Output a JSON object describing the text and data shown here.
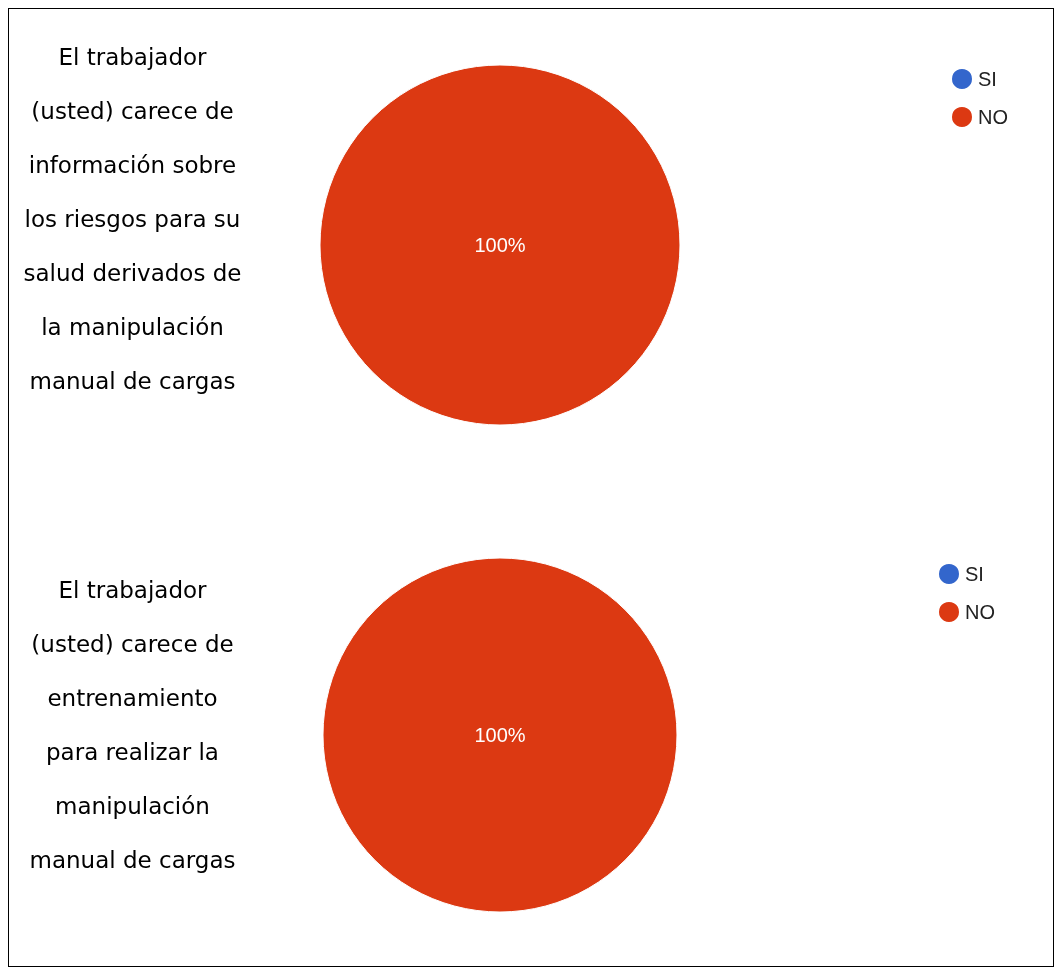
{
  "chart_data": [
    {
      "type": "pie",
      "title": "El trabajador (usted) carece de información sobre los riesgos para su salud derivados de la manipulación manual de cargas",
      "categories": [
        "SI",
        "NO"
      ],
      "values": [
        0,
        100
      ],
      "colors": [
        "#3366cc",
        "#dc3912"
      ],
      "value_labels": [
        null,
        "100%"
      ],
      "legend": "top right"
    },
    {
      "type": "pie",
      "title": "El trabajador (usted) carece de entrenamiento para realizar la manipulación manual de cargas",
      "categories": [
        "SI",
        "NO"
      ],
      "values": [
        0,
        100
      ],
      "colors": [
        "#3366cc",
        "#dc3912"
      ],
      "value_labels": [
        null,
        "100%"
      ],
      "legend": "top right"
    }
  ]
}
